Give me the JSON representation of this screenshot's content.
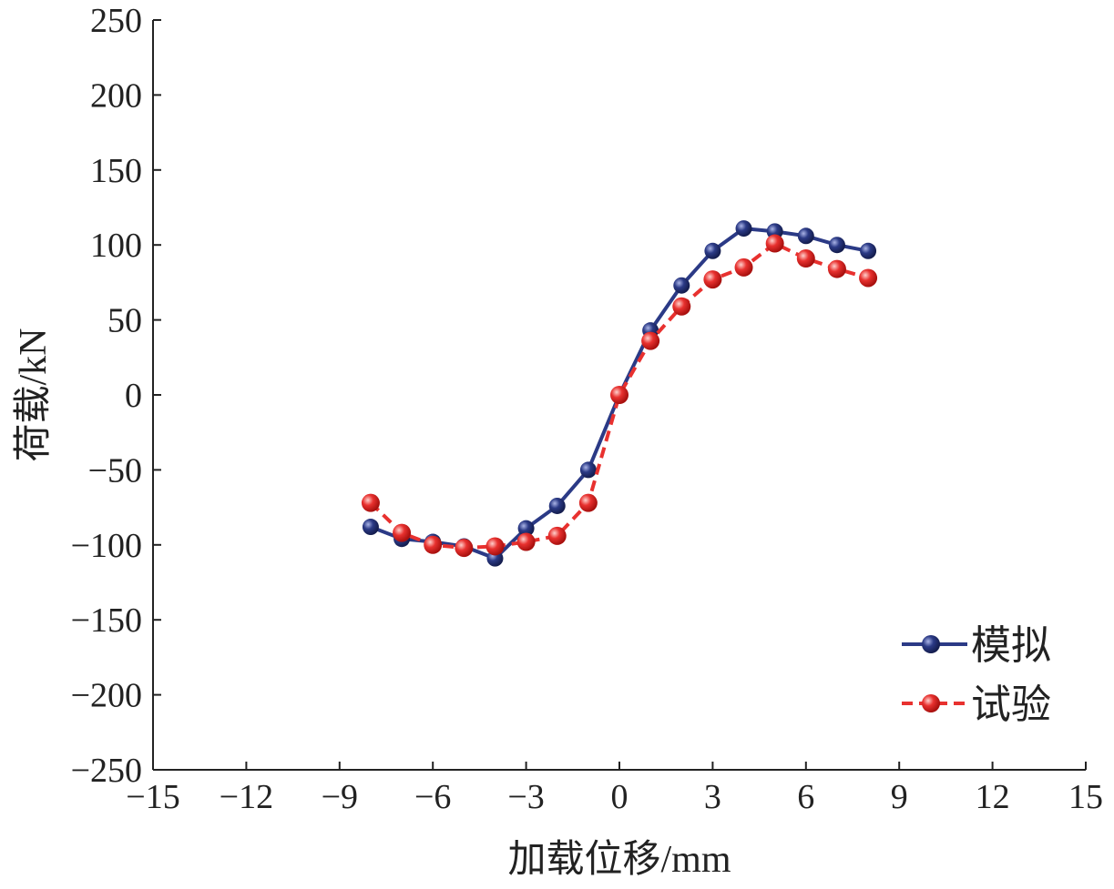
{
  "chart_data": {
    "type": "line",
    "title": "",
    "xlabel": "加载位移/mm",
    "ylabel": "荷载/kN",
    "xlim": [
      -15,
      15
    ],
    "ylim": [
      -250,
      250
    ],
    "xticks": [
      -15,
      -12,
      -9,
      -6,
      -3,
      0,
      3,
      6,
      9,
      12,
      15
    ],
    "yticks": [
      250,
      200,
      150,
      100,
      50,
      0,
      -50,
      -100,
      -150,
      -200,
      -250
    ],
    "xtick_labels": [
      "−15",
      "−12",
      "−9",
      "−6",
      "−3",
      "0",
      "3",
      "6",
      "9",
      "12",
      "15"
    ],
    "ytick_labels": [
      "250",
      "200",
      "150",
      "100",
      "50",
      "0",
      "−50",
      "−100",
      "−150",
      "−200",
      "−250"
    ],
    "grid": false,
    "legend_position": "bottom-right",
    "x": [
      -8,
      -7,
      -6,
      -5,
      -4,
      -3,
      -2,
      -1,
      0,
      1,
      2,
      3,
      4,
      5,
      6,
      7,
      8
    ],
    "series": [
      {
        "name": "模拟",
        "color": "#2b3a86",
        "dash": "solid",
        "values": [
          -88,
          -96,
          -98,
          -101,
          -109,
          -89,
          -74,
          -50,
          0,
          43,
          73,
          96,
          111,
          109,
          106,
          100,
          96
        ]
      },
      {
        "name": "试验",
        "color": "#e8312f",
        "dash": "dashed",
        "values": [
          -72,
          -92,
          -100,
          -102,
          -101,
          -98,
          -94,
          -72,
          0,
          36,
          59,
          77,
          85,
          101,
          91,
          84,
          78
        ]
      }
    ]
  }
}
